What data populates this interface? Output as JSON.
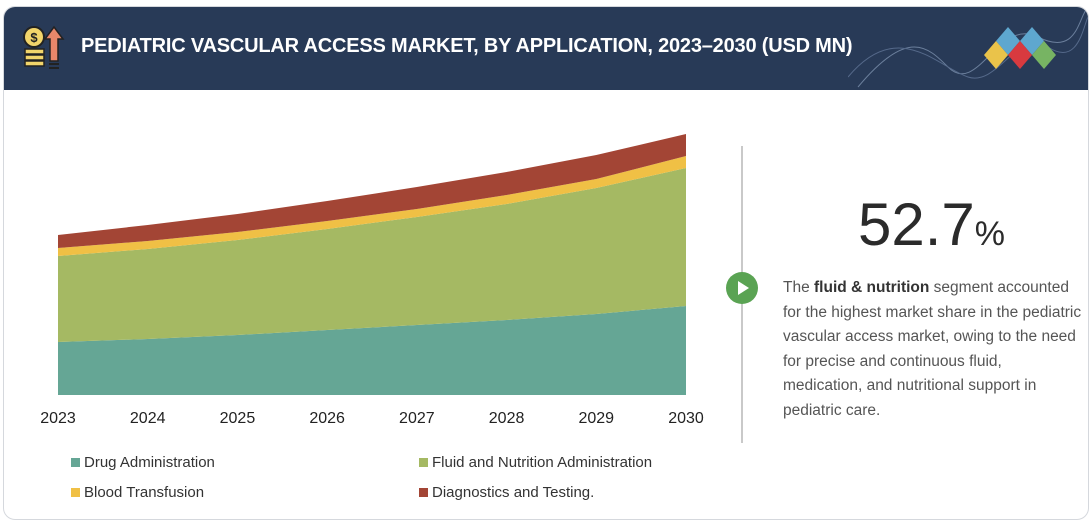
{
  "header": {
    "title": "PEDIATRIC VASCULAR ACCESS MARKET, BY APPLICATION, 2023–2030 (USD MN)",
    "icon": "money-growth-icon",
    "logo": "diamonds-logo"
  },
  "chart_data": {
    "type": "area",
    "stacked": true,
    "title": "PEDIATRIC VASCULAR ACCESS MARKET, BY APPLICATION, 2023–2030 (USD MN)",
    "categories": [
      "2023",
      "2024",
      "2025",
      "2026",
      "2027",
      "2028",
      "2029",
      "2030"
    ],
    "y_axis_shown": false,
    "grid": false,
    "legend_position": "bottom",
    "series": [
      {
        "name": "Drug Administration",
        "color": "#65a695",
        "values": [
          53,
          56,
          60,
          65,
          70,
          75,
          81,
          89
        ]
      },
      {
        "name": "Fluid and Nutrition Administration",
        "color": "#a5b963",
        "values": [
          86,
          90,
          95,
          101,
          108,
          116,
          126,
          138
        ]
      },
      {
        "name": "Blood Transfusion",
        "color": "#f0c045",
        "values": [
          8,
          8,
          8,
          8,
          8,
          9,
          9,
          12
        ]
      },
      {
        "name": "Diagnostics and Testing.",
        "color": "#a34535",
        "values": [
          13,
          16,
          18,
          20,
          22,
          23,
          24,
          22
        ]
      }
    ]
  },
  "highlight": {
    "value": "52.7",
    "unit": "%",
    "text_pre": "The ",
    "text_bold": "fluid & nutrition",
    "text_post": " segment accounted for the highest market share in the pediatric vascular access market, owing to the need for precise and continuous fluid, medication, and nutritional support in pediatric care."
  }
}
